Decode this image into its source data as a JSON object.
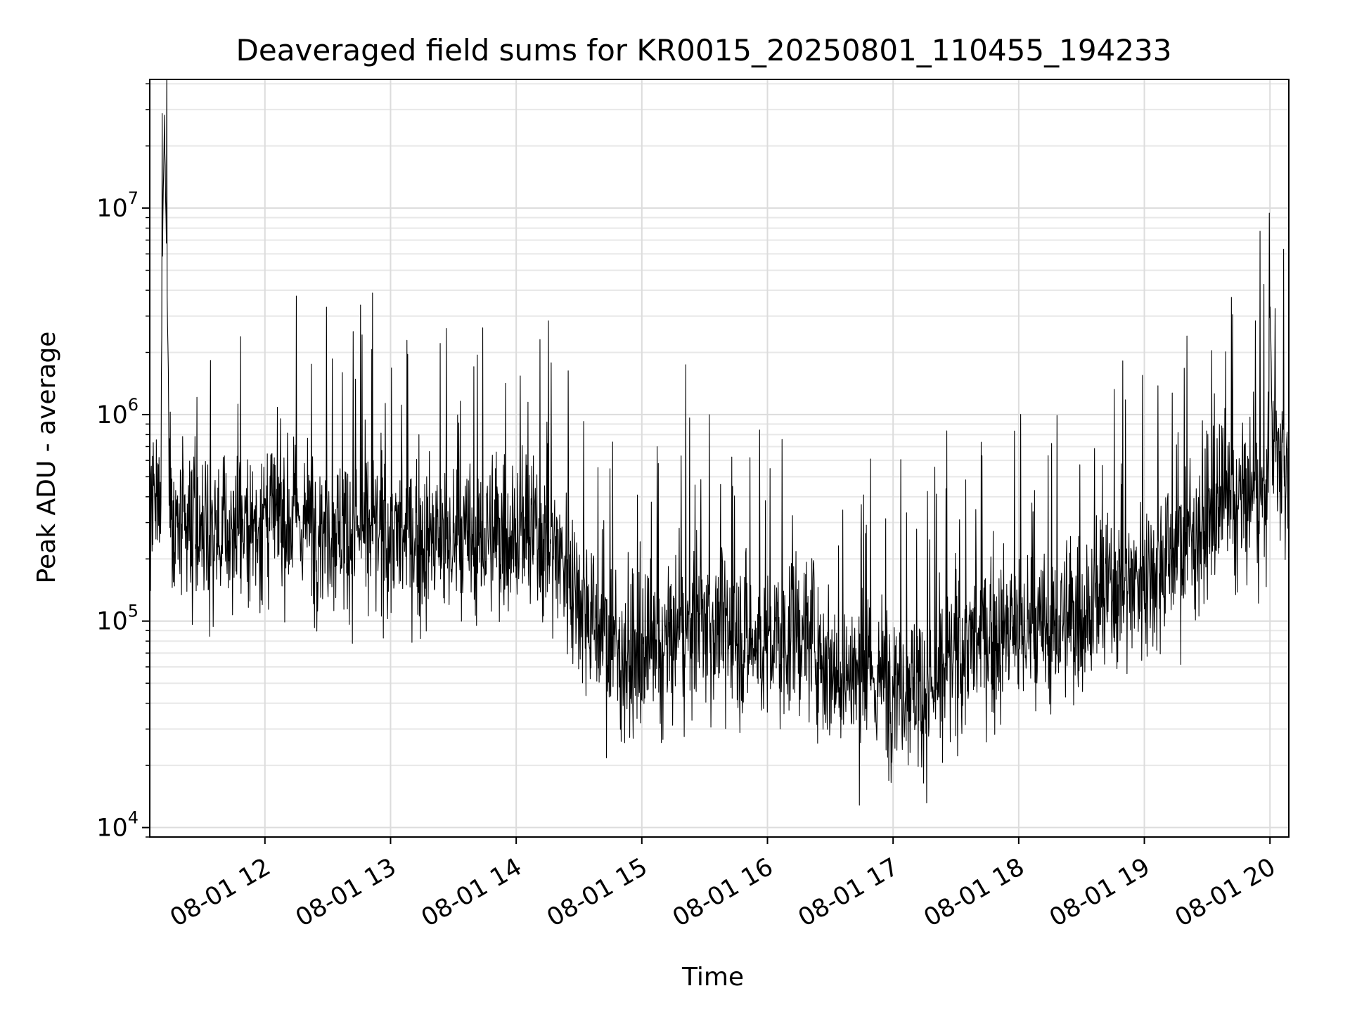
{
  "chart_data": {
    "type": "line",
    "title": "Deaveraged field sums for KR0015_20250801_110455_194233",
    "xlabel": "Time",
    "ylabel": "Peak ADU - average",
    "yscale": "log",
    "ylim": [
      9000,
      42000000
    ],
    "xlim": [
      "2025-08-01 11:05",
      "2025-08-01 20:09"
    ],
    "grid": true,
    "line_color": "#000000",
    "x_ticks": [
      {
        "t": "2025-08-01 12:00",
        "label": "08-01 12"
      },
      {
        "t": "2025-08-01 13:00",
        "label": "08-01 13"
      },
      {
        "t": "2025-08-01 14:00",
        "label": "08-01 14"
      },
      {
        "t": "2025-08-01 15:00",
        "label": "08-01 15"
      },
      {
        "t": "2025-08-01 16:00",
        "label": "08-01 16"
      },
      {
        "t": "2025-08-01 17:00",
        "label": "08-01 17"
      },
      {
        "t": "2025-08-01 18:00",
        "label": "08-01 18"
      },
      {
        "t": "2025-08-01 19:00",
        "label": "08-01 19"
      },
      {
        "t": "2025-08-01 20:00",
        "label": "08-01 20"
      }
    ],
    "y_ticks": [
      {
        "value": 10000,
        "base": "10",
        "exp": "4"
      },
      {
        "value": 100000,
        "base": "10",
        "exp": "5"
      },
      {
        "value": 1000000,
        "base": "10",
        "exp": "6"
      },
      {
        "value": 10000000,
        "base": "10",
        "exp": "7"
      }
    ],
    "series": [
      {
        "x": [
          "2025-08-01 11:05",
          "2025-08-01 11:10",
          "2025-08-01 11:11",
          "2025-08-01 11:12",
          "2025-08-01 11:15",
          "2025-08-01 11:20",
          "2025-08-01 11:30",
          "2025-08-01 11:40",
          "2025-08-01 11:50",
          "2025-08-01 12:00",
          "2025-08-01 12:10",
          "2025-08-01 12:20",
          "2025-08-01 12:30",
          "2025-08-01 12:40",
          "2025-08-01 12:50",
          "2025-08-01 13:00",
          "2025-08-01 13:10",
          "2025-08-01 13:20",
          "2025-08-01 13:30",
          "2025-08-01 13:40",
          "2025-08-01 13:50",
          "2025-08-01 14:00",
          "2025-08-01 14:10",
          "2025-08-01 14:20",
          "2025-08-01 14:30",
          "2025-08-01 14:40",
          "2025-08-01 14:50",
          "2025-08-01 15:00",
          "2025-08-01 15:10",
          "2025-08-01 15:20",
          "2025-08-01 15:30",
          "2025-08-01 15:40",
          "2025-08-01 15:50",
          "2025-08-01 16:00",
          "2025-08-01 16:10",
          "2025-08-01 16:20",
          "2025-08-01 16:30",
          "2025-08-01 16:40",
          "2025-08-01 16:50",
          "2025-08-01 17:00",
          "2025-08-01 17:10",
          "2025-08-01 17:20",
          "2025-08-01 17:30",
          "2025-08-01 17:40",
          "2025-08-01 17:50",
          "2025-08-01 18:00",
          "2025-08-01 18:10",
          "2025-08-01 18:20",
          "2025-08-01 18:30",
          "2025-08-01 18:40",
          "2025-08-01 18:50",
          "2025-08-01 19:00",
          "2025-08-01 19:10",
          "2025-08-01 19:20",
          "2025-08-01 19:30",
          "2025-08-01 19:40",
          "2025-08-01 19:50",
          "2025-08-01 19:59",
          "2025-08-01 20:00",
          "2025-08-01 20:01",
          "2025-08-01 20:05",
          "2025-08-01 20:09"
        ],
        "y": [
          300000,
          350000,
          5500000,
          28000000,
          280000,
          260000,
          250000,
          270000,
          280000,
          310000,
          320000,
          300000,
          290000,
          280000,
          270000,
          260000,
          250000,
          240000,
          230000,
          240000,
          260000,
          280000,
          250000,
          220000,
          140000,
          90000,
          70000,
          60000,
          70000,
          90000,
          100000,
          90000,
          80000,
          75000,
          85000,
          90000,
          60000,
          55000,
          50000,
          55000,
          50000,
          45000,
          70000,
          80000,
          85000,
          90000,
          85000,
          95000,
          110000,
          130000,
          150000,
          170000,
          200000,
          250000,
          300000,
          350000,
          380000,
          420000,
          4000000,
          700000,
          600000,
          650000
        ]
      }
    ]
  }
}
